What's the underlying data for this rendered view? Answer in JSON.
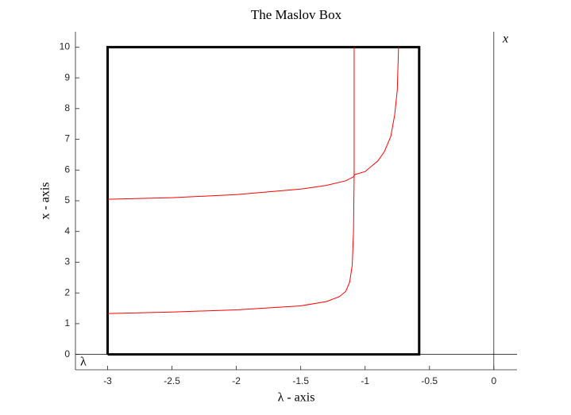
{
  "chart_data": {
    "type": "line",
    "title": "The Maslov Box",
    "xlabel": "λ - axis",
    "ylabel": "x - axis",
    "annotations": [
      "x",
      "λ"
    ],
    "xlim": [
      -3.25,
      0.18
    ],
    "ylim": [
      -0.5,
      10.5
    ],
    "xticks": [
      -3,
      -2.5,
      -2,
      -1.5,
      -1,
      -0.5,
      0
    ],
    "yticks": [
      0,
      1,
      2,
      3,
      4,
      5,
      6,
      7,
      8,
      9,
      10
    ],
    "series": [
      {
        "color": "#000000",
        "width": 3,
        "x": [
          -3,
          -3,
          -0.58,
          -0.58,
          -3
        ],
        "y": [
          0,
          10,
          10,
          0,
          0
        ]
      },
      {
        "color": "#000000",
        "width": 0.7,
        "x": [
          0,
          0
        ],
        "y": [
          -0.5,
          10.5
        ]
      },
      {
        "color": "#000000",
        "width": 0.7,
        "x": [
          -3.25,
          0.18
        ],
        "y": [
          0,
          0
        ]
      },
      {
        "color": "#ff0000",
        "width": 1,
        "x": [
          -3,
          -2.5,
          -2,
          -1.5,
          -1.3,
          -1.2,
          -1.15,
          -1.12,
          -1.1,
          -1.09,
          -1.085,
          -1.085,
          -1.085
        ],
        "y": [
          1.33,
          1.38,
          1.45,
          1.58,
          1.72,
          1.88,
          2.05,
          2.35,
          2.9,
          4,
          5.8,
          8,
          10
        ]
      },
      {
        "color": "#ff0000",
        "width": 1,
        "x": [
          -3,
          -2.5,
          -2,
          -1.5,
          -1.3,
          -1.15,
          -1.09,
          -1.08,
          -1.0,
          -0.9,
          -0.85,
          -0.8,
          -0.77,
          -0.75,
          -0.74
        ],
        "y": [
          5.05,
          5.1,
          5.2,
          5.38,
          5.5,
          5.65,
          5.78,
          5.85,
          5.95,
          6.3,
          6.6,
          7.1,
          7.8,
          8.6,
          10
        ]
      }
    ]
  }
}
